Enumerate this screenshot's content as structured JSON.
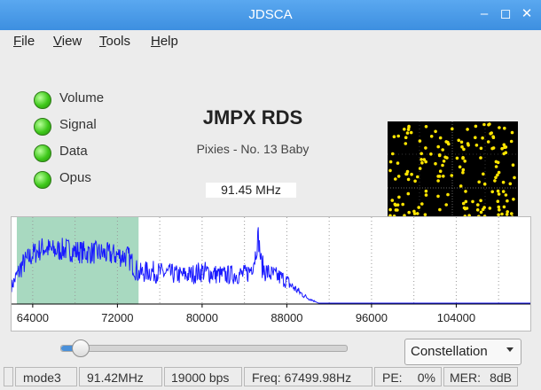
{
  "window": {
    "title": "JDSCA"
  },
  "menu": [
    {
      "id": "file",
      "label": "File",
      "u": "F",
      "rest": "ile"
    },
    {
      "id": "view",
      "label": "View",
      "u": "V",
      "rest": "iew"
    },
    {
      "id": "tools",
      "label": "Tools",
      "u": "T",
      "rest": "ools"
    },
    {
      "id": "help",
      "label": "Help",
      "u": "H",
      "rest": "elp"
    }
  ],
  "indicators": [
    {
      "label": "Volume",
      "state": "on",
      "color": "#3ec81a"
    },
    {
      "label": "Signal",
      "state": "on",
      "color": "#3ec81a"
    },
    {
      "label": "Data",
      "state": "on",
      "color": "#3ec81a"
    },
    {
      "label": "Opus",
      "state": "on",
      "color": "#3ec81a"
    }
  ],
  "station": {
    "name": "JMPX RDS",
    "song": "Pixies - No. 13 Baby",
    "frequency": "91.45 MHz"
  },
  "chart_data": {
    "type": "area",
    "title": "",
    "xlabel": "",
    "ylabel": "",
    "xlim": [
      62000,
      111000
    ],
    "ylim": [
      0,
      100
    ],
    "xticks": [
      64000,
      72000,
      80000,
      88000,
      96000,
      104000
    ],
    "tick_labels": [
      "64000",
      "72000",
      "80000",
      "88000",
      "96000",
      "104000"
    ],
    "highlight_band": {
      "from": 62500,
      "to": 74000,
      "color": "#a8d9c0"
    },
    "series_color": "#1a1aff",
    "series": [
      {
        "name": "spectrum",
        "x": [
          62000,
          63000,
          64000,
          65000,
          66000,
          67000,
          68000,
          69000,
          70000,
          71000,
          72000,
          73000,
          74000,
          75000,
          76000,
          77000,
          78000,
          79000,
          80000,
          81000,
          82000,
          83000,
          84000,
          84500,
          85000,
          85300,
          85600,
          86000,
          86500,
          87000,
          87500,
          88000,
          88500,
          89000,
          89500,
          90000,
          90500,
          91000,
          92000,
          110000
        ],
        "values": [
          20,
          45,
          58,
          66,
          62,
          64,
          62,
          60,
          60,
          58,
          57,
          55,
          35,
          38,
          36,
          35,
          33,
          34,
          38,
          35,
          33,
          34,
          34,
          38,
          55,
          80,
          45,
          38,
          34,
          32,
          30,
          26,
          20,
          15,
          10,
          6,
          3,
          0,
          0,
          0
        ]
      }
    ]
  },
  "constellation": {
    "points_per_quadrant": 55,
    "point_color": "#ffe500"
  },
  "slider": {
    "value_fraction": 0.07
  },
  "display_mode": {
    "selected": "Constellation"
  },
  "status": [
    "mode3",
    "91.42MHz",
    "19000 bps",
    "Freq: 67499.98Hz",
    "PE:",
    "0%",
    "MER:",
    "8dB"
  ]
}
